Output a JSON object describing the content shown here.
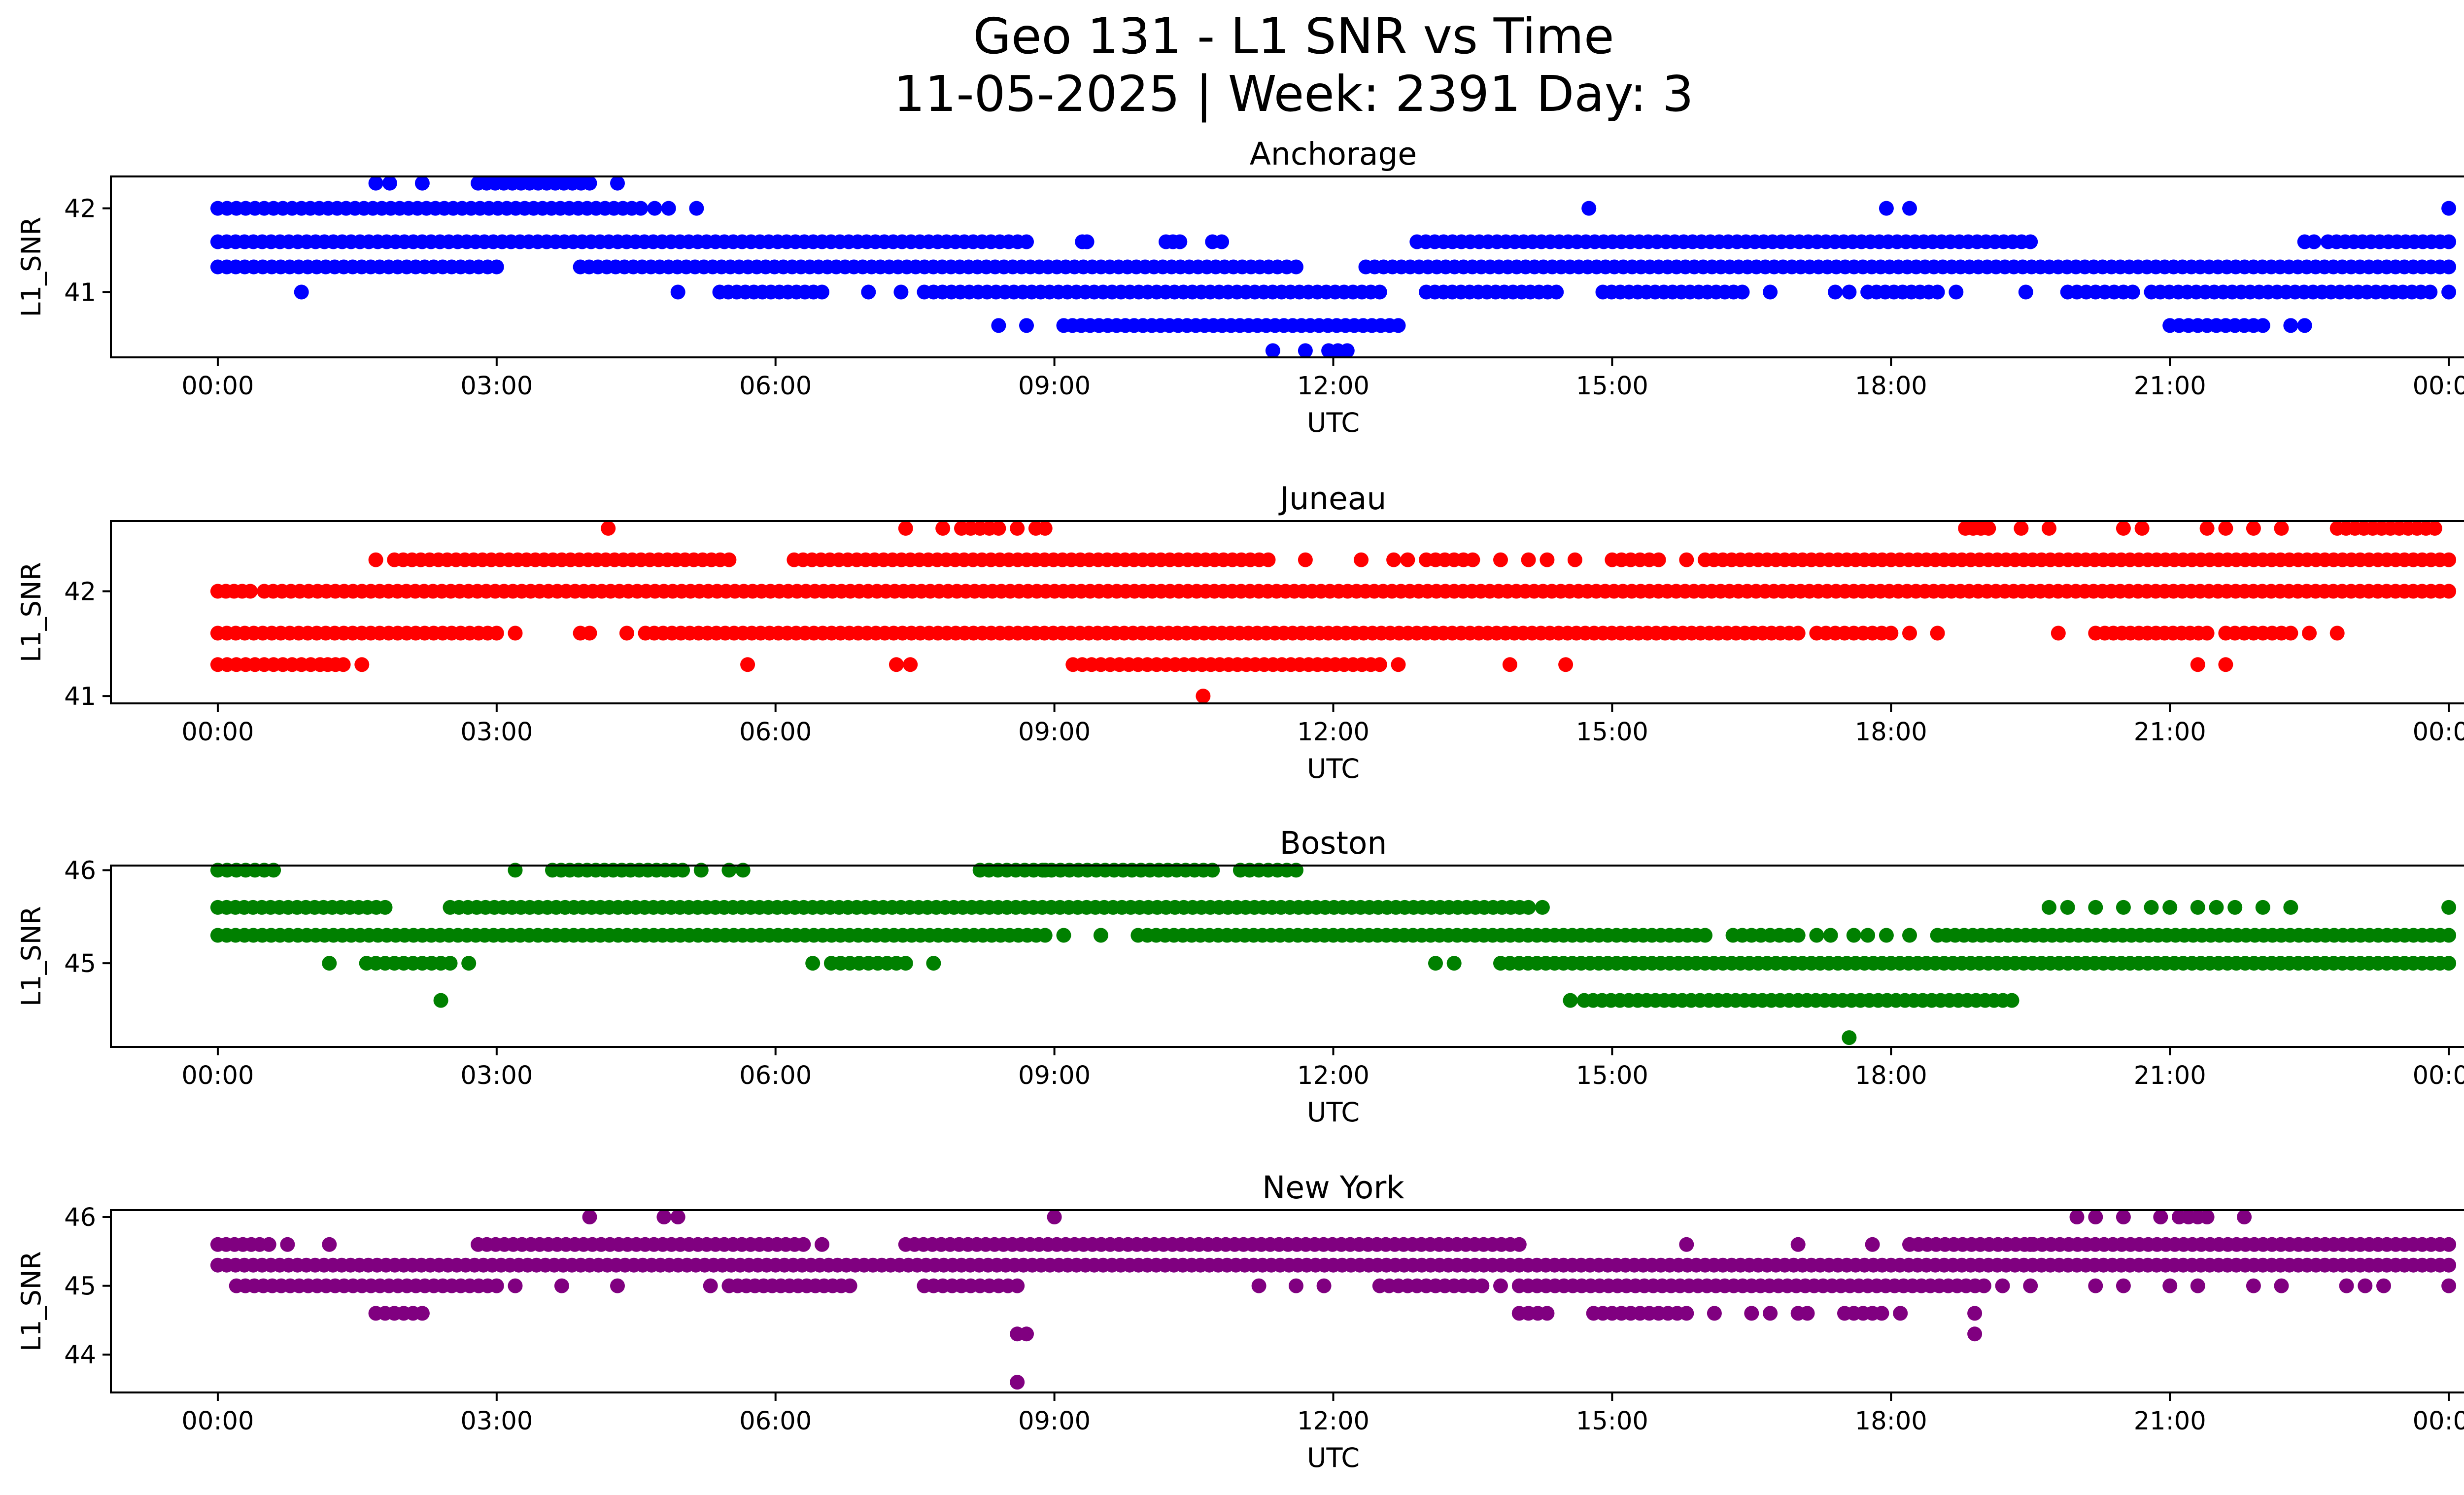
{
  "figure": {
    "title_line1": "Geo 131 - L1 SNR vs Time",
    "title_line2": "11-05-2025 | Week: 2391 Day: 3"
  },
  "chart_data": [
    {
      "type": "scatter",
      "title": "Anchorage",
      "color": "#0000ff",
      "xlabel": "UTC",
      "ylabel": "L1_SNR",
      "xlim_hours": [
        -1.15,
        25.15
      ],
      "ylim": [
        40.22,
        42.38
      ],
      "x_ticks": [
        0,
        3,
        6,
        9,
        12,
        15,
        18,
        21,
        24
      ],
      "x_tick_labels": [
        "00:00",
        "03:00",
        "06:00",
        "09:00",
        "12:00",
        "15:00",
        "18:00",
        "21:00",
        "00:00"
      ],
      "y_ticks": [
        41,
        42
      ],
      "y_tick_labels": [
        "41",
        "42"
      ],
      "series": [
        {
          "y": 41.6,
          "spans": [
            [
              0,
              8.7
            ],
            [
              9.3,
              9.35
            ],
            [
              10.2,
              10.35
            ],
            [
              10.7,
              10.8
            ],
            [
              12.9,
              19.5
            ],
            [
              22.45,
              22.55
            ],
            [
              22.7,
              24
            ]
          ],
          "points": []
        },
        {
          "y": 41.3,
          "spans": [
            [
              0,
              3.0
            ],
            [
              3.9,
              11.4
            ],
            [
              11.5,
              11.6
            ],
            [
              12.35,
              24
            ]
          ],
          "points": []
        },
        {
          "y": 42.0,
          "spans": [
            [
              0,
              0.9
            ],
            [
              0.9,
              4.55
            ]
          ],
          "points": [
            4.7,
            4.85,
            5.15,
            14.75,
            17.95,
            18.2,
            24
          ]
        },
        {
          "y": 41.0,
          "spans": [
            [
              5.4,
              6.5
            ],
            [
              7.7,
              12.5
            ],
            [
              13.0,
              14.4
            ],
            [
              14.9,
              16.4
            ],
            [
              17.75,
              18.5
            ],
            [
              19.9,
              20.6
            ],
            [
              20.8,
              23.7
            ]
          ],
          "points": [
            0.9,
            4.95,
            7.0,
            7.35,
            7.6,
            16.7,
            17.4,
            17.55,
            18.7,
            19.45,
            23.8,
            24
          ]
        },
        {
          "y": 42.3,
          "spans": [
            [
              2.8,
              4.0
            ]
          ],
          "points": [
            1.7,
            1.85,
            2.2,
            4.3
          ]
        },
        {
          "y": 40.6,
          "spans": [
            [
              9.1,
              12.7
            ],
            [
              21.0,
              22.0
            ]
          ],
          "points": [
            8.4,
            8.7,
            22.3,
            22.45
          ]
        },
        {
          "y": 40.3,
          "spans": [
            [
              11.95,
              12.15
            ]
          ],
          "points": [
            11.35,
            11.7
          ]
        }
      ]
    },
    {
      "type": "scatter",
      "title": "Juneau",
      "color": "#ff0000",
      "xlabel": "UTC",
      "ylabel": "L1_SNR",
      "xlim_hours": [
        -1.15,
        25.15
      ],
      "ylim": [
        40.93,
        42.67
      ],
      "x_ticks": [
        0,
        3,
        6,
        9,
        12,
        15,
        18,
        21,
        24
      ],
      "x_tick_labels": [
        "00:00",
        "03:00",
        "06:00",
        "09:00",
        "12:00",
        "15:00",
        "18:00",
        "21:00",
        "00:00"
      ],
      "y_ticks": [
        41,
        42
      ],
      "y_tick_labels": [
        "41",
        "42"
      ],
      "series": [
        {
          "y": 42.0,
          "spans": [
            [
              0,
              0.35
            ],
            [
              0.5,
              24
            ]
          ],
          "points": []
        },
        {
          "y": 42.3,
          "spans": [
            [
              1.9,
              5.5
            ],
            [
              6.2,
              11.3
            ],
            [
              13.0,
              13.5
            ],
            [
              15.0,
              15.5
            ],
            [
              16.0,
              24
            ]
          ],
          "points": [
            1.7,
            11.7,
            12.3,
            12.65,
            12.8,
            13.8,
            14.1,
            14.3,
            14.6,
            15.8
          ]
        },
        {
          "y": 41.6,
          "spans": [
            [
              0,
              3.0
            ],
            [
              4.6,
              17.0
            ],
            [
              17.3,
              18.0
            ],
            [
              20.3,
              21.4
            ],
            [
              21.6,
              22.3
            ]
          ],
          "points": [
            3.2,
            3.9,
            4.0,
            4.4,
            17.2,
            18.2,
            18.5,
            19.8,
            20.2,
            22.5,
            22.8
          ]
        },
        {
          "y": 41.3,
          "spans": [
            [
              0,
              1.0
            ],
            [
              1.1,
              1.35
            ],
            [
              9.2,
              10.2
            ],
            [
              10.3,
              12.5
            ]
          ],
          "points": [
            1.55,
            5.7,
            7.3,
            7.45,
            12.7,
            13.9,
            14.5,
            21.3,
            21.6
          ]
        },
        {
          "y": 42.6,
          "spans": [
            [
              8.0,
              8.4
            ],
            [
              18.8,
              19.05
            ],
            [
              22.8,
              23.85
            ]
          ],
          "points": [
            4.2,
            7.4,
            7.8,
            8.6,
            8.8,
            8.9,
            19.4,
            19.7,
            20.5,
            20.7,
            21.4,
            21.6,
            21.9,
            22.2
          ]
        },
        {
          "y": 41.0,
          "spans": [],
          "points": [
            10.6
          ]
        }
      ]
    },
    {
      "type": "scatter",
      "title": "Boston",
      "color": "#008000",
      "xlabel": "UTC",
      "ylabel": "L1_SNR",
      "xlim_hours": [
        -1.15,
        25.15
      ],
      "ylim": [
        44.1,
        46.05
      ],
      "x_ticks": [
        0,
        3,
        6,
        9,
        12,
        15,
        18,
        21,
        24
      ],
      "x_tick_labels": [
        "00:00",
        "03:00",
        "06:00",
        "09:00",
        "12:00",
        "15:00",
        "18:00",
        "21:00",
        "00:00"
      ],
      "y_ticks": [
        45,
        46
      ],
      "y_tick_labels": [
        "45",
        "46"
      ],
      "series": [
        {
          "y": 45.6,
          "spans": [
            [
              0,
              1.8
            ],
            [
              2.5,
              14.1
            ]
          ],
          "points": [
            14.25,
            19.7,
            19.9,
            20.2,
            20.5,
            20.8,
            21.0,
            21.3,
            21.5,
            21.7,
            22.0,
            22.3,
            24
          ]
        },
        {
          "y": 45.3,
          "spans": [
            [
              0,
              8.9
            ],
            [
              10.0,
              16.0
            ],
            [
              16.3,
              17.0
            ],
            [
              18.5,
              24
            ]
          ],
          "points": [
            9.1,
            9.5,
            9.9,
            17.2,
            17.35,
            17.6,
            17.75,
            17.95,
            18.2
          ]
        },
        {
          "y": 45.0,
          "spans": [
            [
              1.6,
              2.5
            ],
            [
              6.6,
              7.4
            ],
            [
              14.0,
              24
            ]
          ],
          "points": [
            1.2,
            2.7,
            6.4,
            7.7,
            13.1,
            13.3,
            13.8,
            13.9
          ]
        },
        {
          "y": 46.0,
          "spans": [
            [
              0,
              0.6
            ],
            [
              3.6,
              5.0
            ],
            [
              8.2,
              10.7
            ],
            [
              11.0,
              11.6
            ]
          ],
          "points": [
            3.2,
            5.2,
            5.5,
            5.65,
            8.9
          ]
        },
        {
          "y": 44.6,
          "spans": [
            [
              14.7,
              19.3
            ]
          ],
          "points": [
            2.4,
            14.55
          ]
        },
        {
          "y": 44.2,
          "spans": [],
          "points": [
            17.55
          ]
        }
      ]
    },
    {
      "type": "scatter",
      "title": "New York",
      "color": "#800080",
      "xlabel": "UTC",
      "ylabel": "L1_SNR",
      "xlim_hours": [
        -1.15,
        25.15
      ],
      "ylim": [
        43.45,
        46.1
      ],
      "x_ticks": [
        0,
        3,
        6,
        9,
        12,
        15,
        18,
        21,
        24
      ],
      "x_tick_labels": [
        "00:00",
        "03:00",
        "06:00",
        "09:00",
        "12:00",
        "15:00",
        "18:00",
        "21:00",
        "00:00"
      ],
      "y_ticks": [
        44,
        45,
        46
      ],
      "y_tick_labels": [
        "44",
        "45",
        "46"
      ],
      "series": [
        {
          "y": 45.3,
          "spans": [
            [
              0,
              24
            ]
          ],
          "points": []
        },
        {
          "y": 45.6,
          "spans": [
            [
              0,
              0.45
            ],
            [
              2.8,
              6.3
            ],
            [
              7.4,
              14.0
            ],
            [
              18.2,
              24
            ]
          ],
          "points": [
            0.55,
            0.75,
            1.2,
            6.5,
            15.8,
            17.0,
            17.8,
            19.5
          ]
        },
        {
          "y": 45.0,
          "spans": [
            [
              0.2,
              3.0
            ],
            [
              5.5,
              6.8
            ],
            [
              7.6,
              8.6
            ],
            [
              12.5,
              13.5
            ],
            [
              14.0,
              19.0
            ]
          ],
          "points": [
            3.2,
            3.7,
            4.3,
            5.3,
            11.2,
            11.6,
            11.9,
            13.6,
            13.8,
            19.2,
            19.5,
            20.2,
            20.5,
            21.0,
            21.3,
            21.9,
            22.2,
            22.9,
            23.1,
            23.3,
            24
          ]
        },
        {
          "y": 44.6,
          "spans": [
            [
              1.7,
              2.2
            ],
            [
              14.0,
              14.3
            ],
            [
              14.8,
              15.8
            ],
            [
              17.5,
              17.9
            ]
          ],
          "points": [
            16.1,
            16.5,
            16.7,
            17.0,
            17.1,
            18.1,
            18.9
          ]
        },
        {
          "y": 46.0,
          "spans": [],
          "points": [
            4.0,
            4.8,
            4.95,
            9.0,
            20.0,
            20.2,
            20.5,
            20.9,
            21.1,
            21.2,
            21.3,
            21.4,
            21.8
          ]
        },
        {
          "y": 44.3,
          "spans": [],
          "points": [
            8.6,
            8.7,
            18.9
          ]
        },
        {
          "y": 43.6,
          "spans": [],
          "points": [
            8.6
          ]
        }
      ]
    }
  ]
}
